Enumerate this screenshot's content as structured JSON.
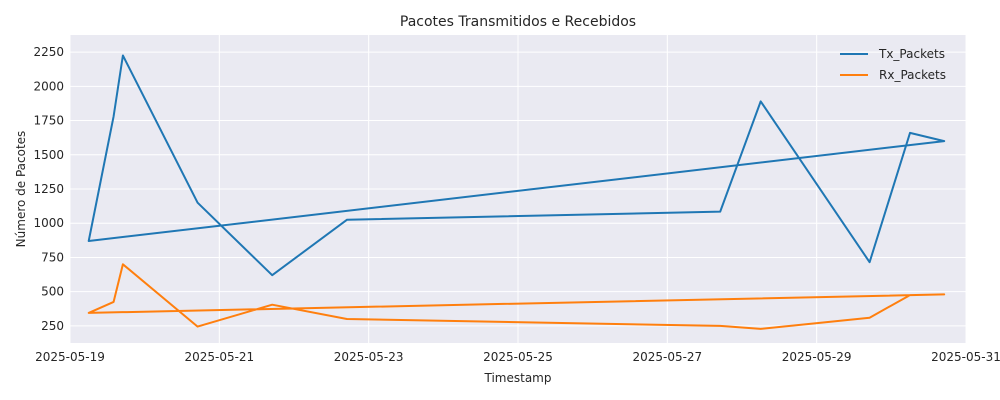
{
  "chart_data": {
    "type": "line",
    "title": "Pacotes Transmitidos e Recebidos",
    "xlabel": "Timestamp",
    "ylabel": "Número de Pacotes",
    "x_type": "date",
    "xlim": [
      "2025-05-19T00:00",
      "2025-05-31T00:00"
    ],
    "ylim": [
      125,
      2375
    ],
    "x_ticks": [
      "2025-05-19",
      "2025-05-21",
      "2025-05-23",
      "2025-05-25",
      "2025-05-27",
      "2025-05-29",
      "2025-05-31"
    ],
    "y_ticks": [
      250,
      500,
      750,
      1000,
      1250,
      1500,
      1750,
      2000,
      2250
    ],
    "grid": true,
    "legend_position": "top-right",
    "series": [
      {
        "name": "Tx_Packets",
        "color": "#1f77b4",
        "points": [
          {
            "x": "2025-05-22T17:00",
            "y": 1025
          },
          {
            "x": "2025-05-27T17:00",
            "y": 1085
          },
          {
            "x": "2025-05-28T06:00",
            "y": 1890
          },
          {
            "x": "2025-05-29T17:00",
            "y": 715
          },
          {
            "x": "2025-05-30T06:00",
            "y": 1660
          },
          {
            "x": "2025-05-30T17:00",
            "y": 1600
          },
          {
            "x": "2025-05-19T06:00",
            "y": 870
          },
          {
            "x": "2025-05-19T14:00",
            "y": 1780
          },
          {
            "x": "2025-05-19T17:00",
            "y": 2225
          },
          {
            "x": "2025-05-20T17:00",
            "y": 1150
          },
          {
            "x": "2025-05-21T17:00",
            "y": 620
          },
          {
            "x": "2025-05-22T17:00",
            "y": 1025
          }
        ]
      },
      {
        "name": "Rx_Packets",
        "color": "#ff7f0e",
        "points": [
          {
            "x": "2025-05-22T17:00",
            "y": 300
          },
          {
            "x": "2025-05-27T17:00",
            "y": 250
          },
          {
            "x": "2025-05-28T06:00",
            "y": 228
          },
          {
            "x": "2025-05-29T17:00",
            "y": 310
          },
          {
            "x": "2025-05-30T06:00",
            "y": 475
          },
          {
            "x": "2025-05-30T17:00",
            "y": 480
          },
          {
            "x": "2025-05-19T06:00",
            "y": 345
          },
          {
            "x": "2025-05-19T14:00",
            "y": 425
          },
          {
            "x": "2025-05-19T17:00",
            "y": 700
          },
          {
            "x": "2025-05-20T17:00",
            "y": 245
          },
          {
            "x": "2025-05-21T17:00",
            "y": 405
          },
          {
            "x": "2025-05-22T17:00",
            "y": 300
          }
        ]
      }
    ]
  }
}
